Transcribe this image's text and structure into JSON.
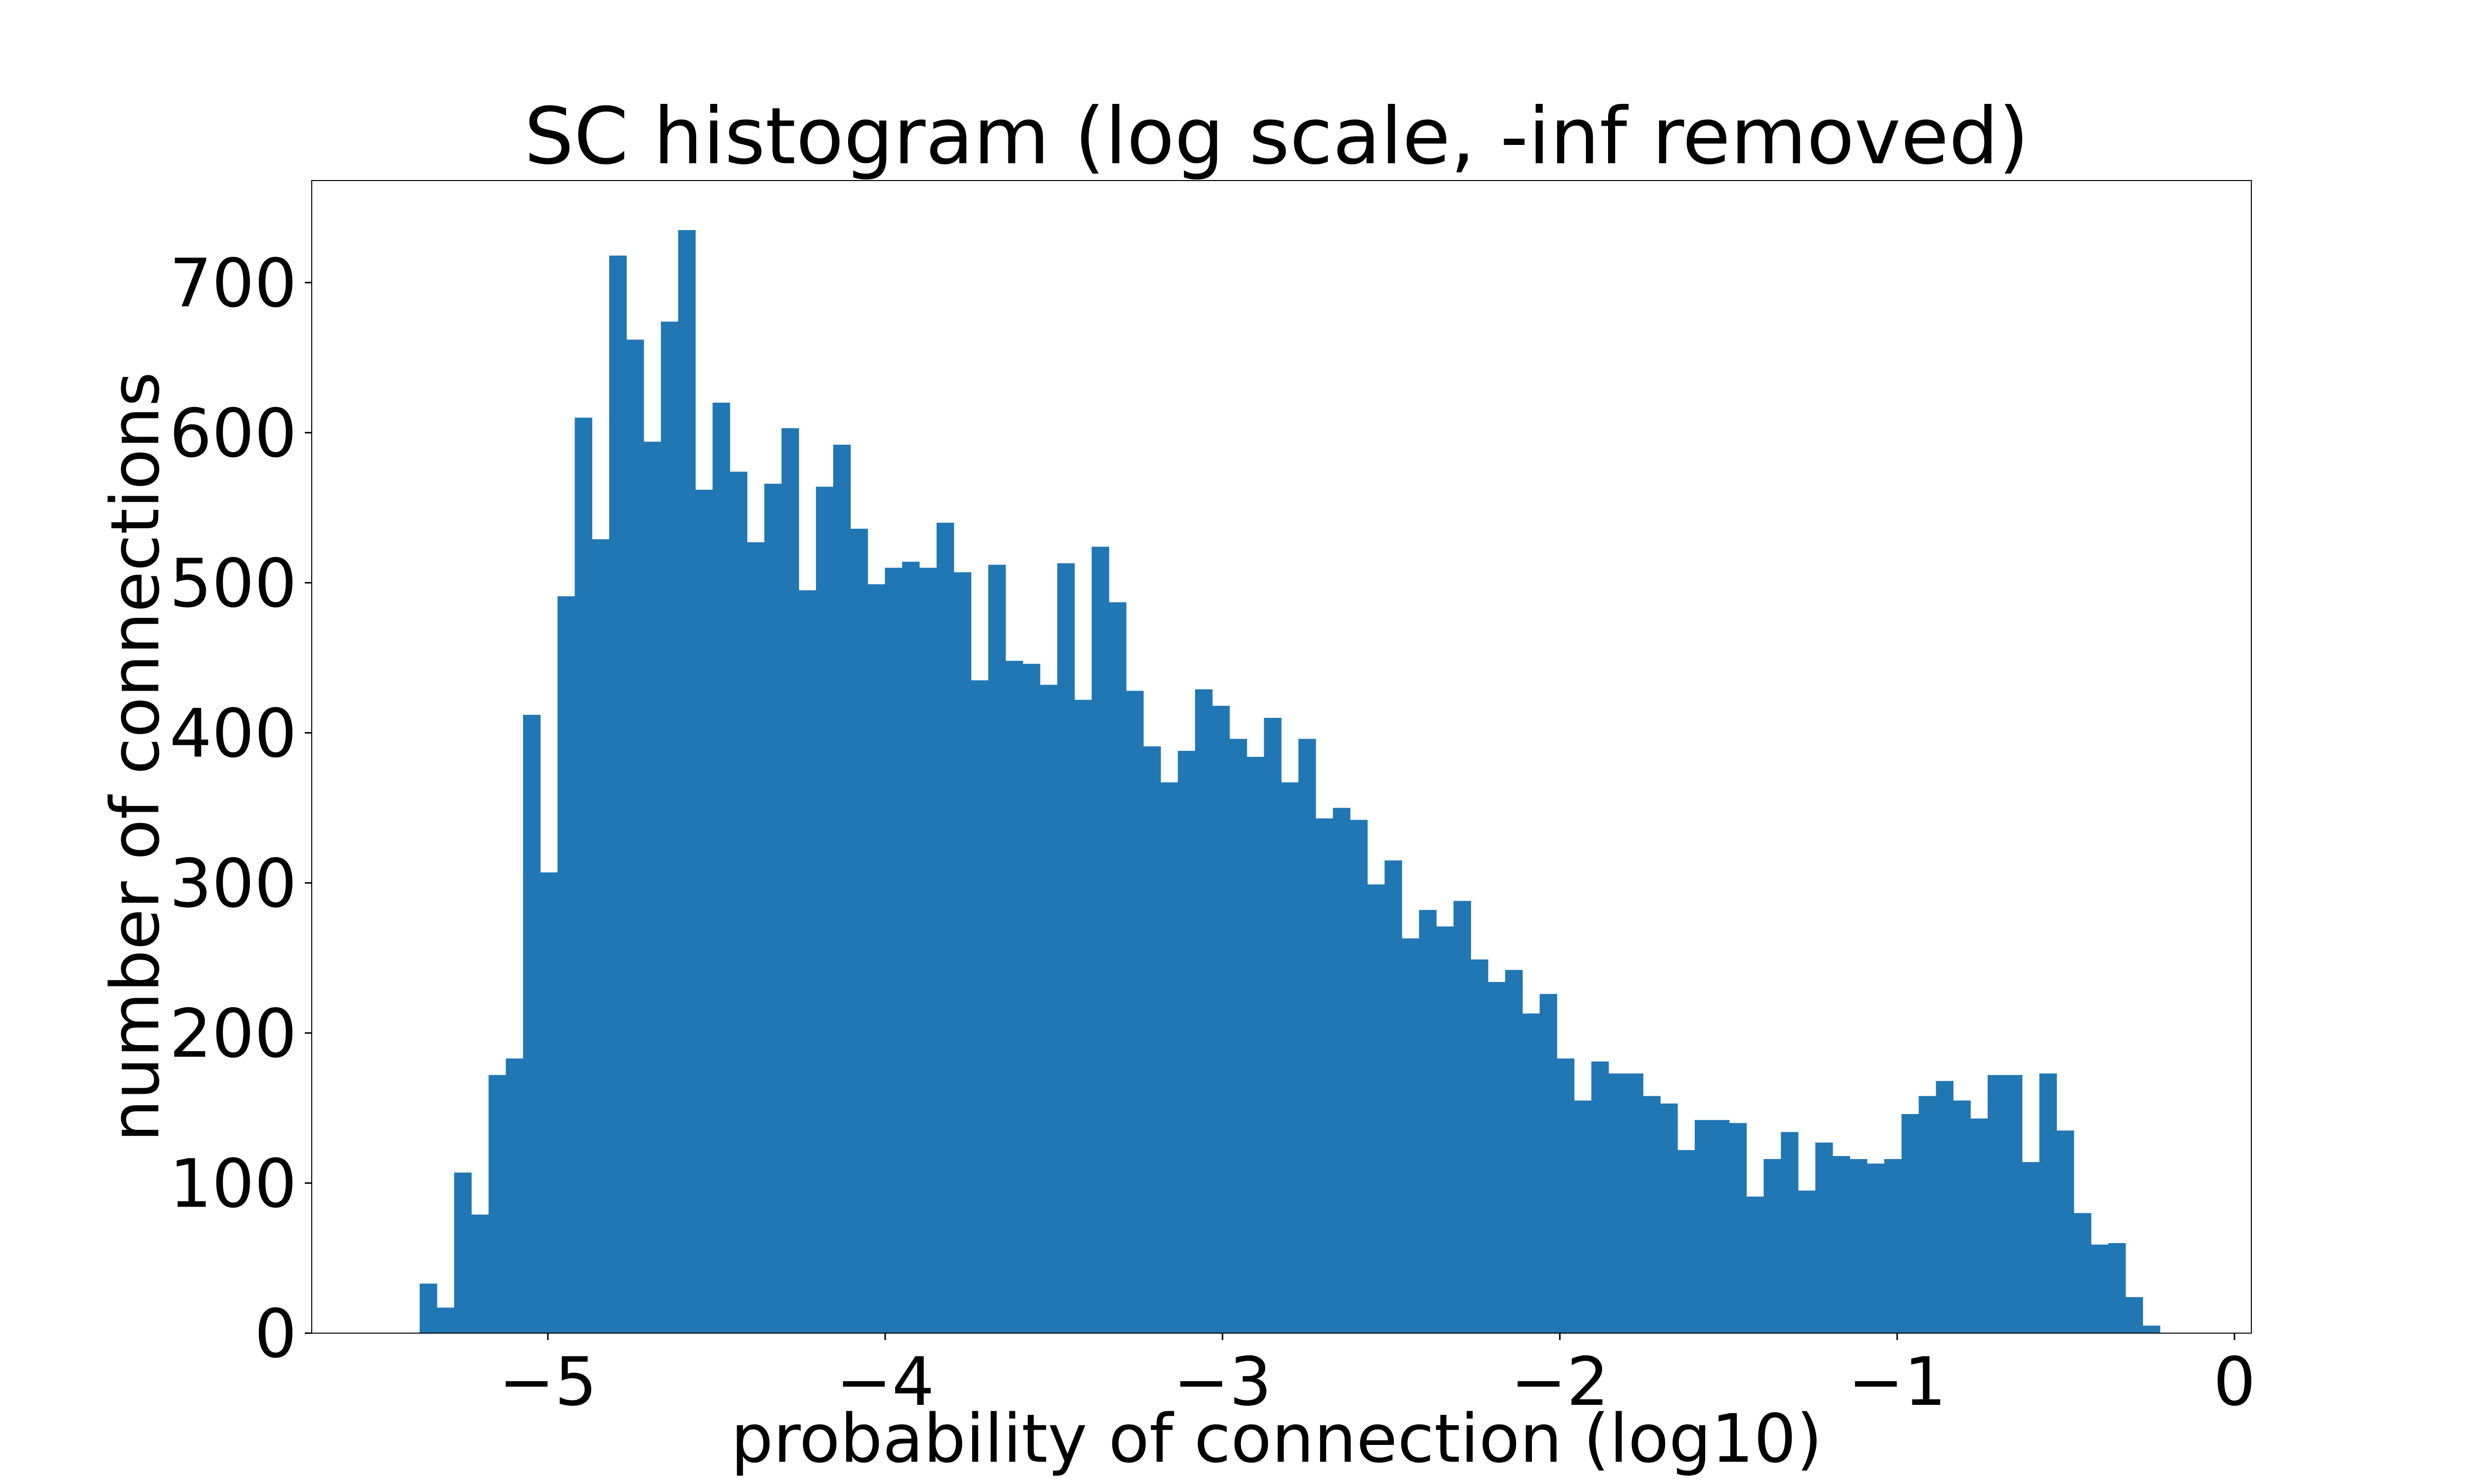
{
  "chart_data": {
    "type": "bar",
    "title": "SC histogram (log scale, -inf removed)",
    "xlabel": "probability of connection (log10)",
    "ylabel": "number of connections",
    "xlim": [
      -5.7,
      0.05
    ],
    "ylim": [
      0,
      768
    ],
    "x_ticks": [
      {
        "value": -5,
        "label": "−5"
      },
      {
        "value": -4,
        "label": "−4"
      },
      {
        "value": -3,
        "label": "−3"
      },
      {
        "value": -2,
        "label": "−2"
      },
      {
        "value": -1,
        "label": "−1"
      },
      {
        "value": 0,
        "label": "0"
      }
    ],
    "y_ticks": [
      {
        "value": 0,
        "label": "0"
      },
      {
        "value": 100,
        "label": "100"
      },
      {
        "value": 200,
        "label": "200"
      },
      {
        "value": 300,
        "label": "300"
      },
      {
        "value": 400,
        "label": "400"
      },
      {
        "value": 500,
        "label": "500"
      },
      {
        "value": 600,
        "label": "600"
      },
      {
        "value": 700,
        "label": "700"
      }
    ],
    "bin_start": -5.38,
    "bin_width": 0.05108,
    "values": [
      33,
      17,
      107,
      79,
      172,
      183,
      412,
      307,
      491,
      610,
      529,
      718,
      662,
      594,
      674,
      735,
      562,
      620,
      574,
      527,
      566,
      603,
      495,
      564,
      592,
      536,
      499,
      510,
      514,
      510,
      540,
      507,
      435,
      512,
      448,
      446,
      432,
      513,
      422,
      524,
      487,
      428,
      391,
      367,
      388,
      429,
      418,
      396,
      384,
      410,
      367,
      396,
      343,
      350,
      342,
      299,
      315,
      263,
      282,
      271,
      288,
      249,
      234,
      242,
      213,
      226,
      183,
      155,
      181,
      173,
      173,
      158,
      153,
      122,
      142,
      142,
      140,
      91,
      116,
      134,
      95,
      127,
      118,
      116,
      113,
      116,
      146,
      158,
      168,
      155,
      143,
      172,
      172,
      114,
      173,
      135,
      80,
      59,
      60,
      24,
      5
    ],
    "grid": false,
    "legend": "none"
  }
}
